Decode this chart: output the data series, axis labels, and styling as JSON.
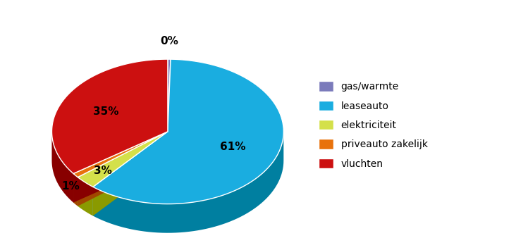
{
  "labels": [
    "gas/warmte",
    "leaseauto",
    "elektriciteit",
    "priveauto zakelijk",
    "vluchten"
  ],
  "values": [
    0.4,
    61,
    3,
    1,
    35
  ],
  "display_pcts": [
    "0%",
    "61%",
    "3%",
    "1%",
    "35%"
  ],
  "colors": [
    "#7B7BBB",
    "#1AADE0",
    "#D4E04A",
    "#E8720C",
    "#CC1010"
  ],
  "dark_colors": [
    "#5A5A99",
    "#007FA0",
    "#8A9A00",
    "#A04800",
    "#880000"
  ],
  "startangle": 90,
  "legend_labels": [
    "gas/warmte",
    "leaseauto",
    "elektriciteit",
    "priveauto zakelijk",
    "vluchten"
  ],
  "legend_colors": [
    "#7B7BBB",
    "#1AADE0",
    "#D4E04A",
    "#E8720C",
    "#CC1010"
  ]
}
